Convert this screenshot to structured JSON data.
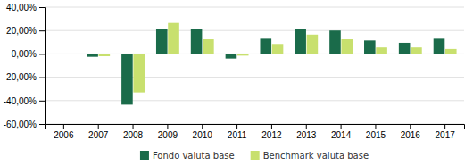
{
  "chart_data": {
    "type": "bar",
    "categories": [
      "2006",
      "2007",
      "2008",
      "2009",
      "2010",
      "2011",
      "2012",
      "2013",
      "2014",
      "2015",
      "2016",
      "2017"
    ],
    "series": [
      {
        "name": "Fondo valuta base",
        "color": "#1a6b4a",
        "values": [
          0.0,
          -0.025,
          -0.435,
          0.215,
          0.215,
          -0.04,
          0.13,
          0.215,
          0.2,
          0.115,
          0.095,
          0.13
        ]
      },
      {
        "name": "Benchmark valuta base",
        "color": "#c8e06e",
        "values": [
          0.0,
          -0.02,
          -0.33,
          0.265,
          0.125,
          -0.015,
          0.085,
          0.165,
          0.125,
          0.055,
          0.055,
          0.042
        ]
      }
    ],
    "ylim": [
      -0.6,
      0.4
    ],
    "yticks": [
      {
        "value": -0.6,
        "label": "-60,00%"
      },
      {
        "value": -0.4,
        "label": "-40,00%"
      },
      {
        "value": -0.2,
        "label": "-20,00%"
      },
      {
        "value": 0.0,
        "label": "0,00%"
      },
      {
        "value": 0.2,
        "label": "20,00%"
      },
      {
        "value": 0.4,
        "label": "40,00%"
      }
    ],
    "grid": true,
    "legend": "bottom"
  }
}
